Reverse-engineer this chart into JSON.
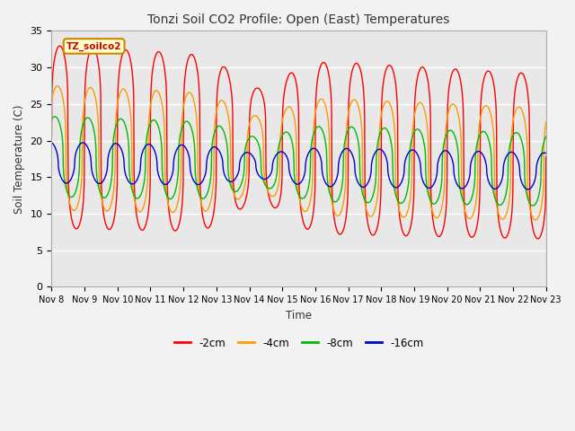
{
  "title": "Tonzi Soil CO2 Profile: Open (East) Temperatures",
  "ylabel": "Soil Temperature (C)",
  "xlabel": "Time",
  "legend_label": "TZ_soilco2",
  "series_labels": [
    "-2cm",
    "-4cm",
    "-8cm",
    "-16cm"
  ],
  "series_colors": [
    "#ff0000",
    "#ff9900",
    "#00bb00",
    "#0000cc"
  ],
  "ylim": [
    0,
    35
  ],
  "yticks": [
    0,
    5,
    10,
    15,
    20,
    25,
    30,
    35
  ],
  "plot_bg": "#e8e8e8",
  "fig_bg": "#f2f2f2",
  "start_day": 8,
  "end_day": 23,
  "n_points": 1440
}
